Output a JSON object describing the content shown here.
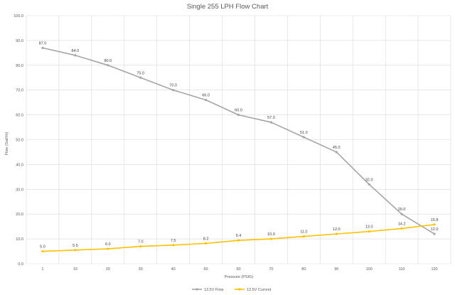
{
  "chart_data": {
    "type": "line",
    "title": "Single 255 LPH Flow Chart",
    "xlabel": "Pressure (PSIG)",
    "ylabel": "Flow (Gal/Hr)",
    "categories": [
      "1",
      "10",
      "20",
      "30",
      "40",
      "50",
      "60",
      "70",
      "80",
      "90",
      "100",
      "110",
      "120"
    ],
    "ylim": [
      0,
      100
    ],
    "yticks": [
      "0.0",
      "10.0",
      "20.0",
      "30.0",
      "40.0",
      "50.0",
      "60.0",
      "70.0",
      "80.0",
      "90.0",
      "100.0"
    ],
    "grid": true,
    "legend_position": "bottom",
    "series": [
      {
        "name": "13.5V Flow",
        "color": "#a5a5a5",
        "values": [
          87,
          84,
          80,
          75,
          70,
          66,
          60,
          57,
          51,
          45,
          32,
          20,
          12
        ],
        "labels": [
          "87.0",
          "84.0",
          "80.0",
          "75.0",
          "70.0",
          "66.0",
          "60.0",
          "57.0",
          "51.0",
          "45.0",
          "32.0",
          "20.0",
          "12.0"
        ]
      },
      {
        "name": "13.5V Current",
        "color": "#ffc000",
        "values": [
          5.0,
          5.5,
          6.0,
          7.0,
          7.5,
          8.2,
          9.4,
          10.0,
          11.0,
          12.0,
          13.0,
          14.2,
          15.8
        ],
        "labels": [
          "5.0",
          "5.5",
          "6.0",
          "7.0",
          "7.5",
          "8.2",
          "9.4",
          "10.0",
          "11.0",
          "12.0",
          "13.0",
          "14.2",
          "15.8"
        ]
      }
    ]
  }
}
